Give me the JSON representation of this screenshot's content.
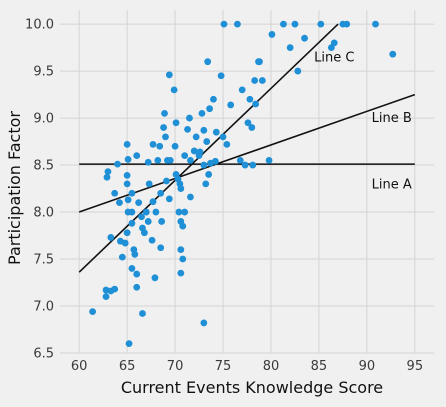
{
  "chart_data": {
    "type": "scatter",
    "title": "",
    "xlabel": "Current Events Knowledge Score",
    "ylabel": "Participation Factor",
    "xlim": [
      58,
      97
    ],
    "ylim": [
      6.5,
      10.15
    ],
    "xticks": [
      60,
      65,
      70,
      75,
      80,
      85,
      90,
      95
    ],
    "yticks": [
      6.5,
      7.0,
      7.5,
      8.0,
      8.5,
      9.0,
      9.5,
      10.0
    ],
    "grid": true,
    "point_color": "#1f8fd6",
    "line_color": "#111111",
    "background": "#f0f0f0",
    "grid_color": "#d4d4d4",
    "points": [
      [
        61.4,
        6.94
      ],
      [
        62.8,
        7.17
      ],
      [
        62.8,
        7.1
      ],
      [
        63.3,
        7.16
      ],
      [
        63.7,
        7.18
      ],
      [
        62.9,
        8.37
      ],
      [
        63.0,
        8.43
      ],
      [
        63.7,
        8.2
      ],
      [
        64.0,
        8.51
      ],
      [
        64.2,
        8.1
      ],
      [
        63.3,
        7.73
      ],
      [
        64.3,
        7.69
      ],
      [
        64.5,
        7.52
      ],
      [
        64.8,
        7.67
      ],
      [
        65.0,
        7.78
      ],
      [
        65.1,
        8.0
      ],
      [
        65.1,
        8.13
      ],
      [
        65.0,
        8.3
      ],
      [
        65.0,
        8.39
      ],
      [
        65.0,
        8.72
      ],
      [
        65.1,
        8.56
      ],
      [
        65.5,
        8.2
      ],
      [
        65.5,
        8.0
      ],
      [
        65.5,
        7.88
      ],
      [
        65.5,
        7.4
      ],
      [
        65.7,
        7.6
      ],
      [
        65.8,
        7.55
      ],
      [
        66.0,
        7.34
      ],
      [
        66.0,
        7.2
      ],
      [
        66.0,
        8.6
      ],
      [
        66.2,
        8.1
      ],
      [
        66.5,
        7.95
      ],
      [
        66.6,
        7.83
      ],
      [
        66.8,
        7.78
      ],
      [
        67.0,
        8.0
      ],
      [
        67.2,
        7.9
      ],
      [
        67.2,
        8.53
      ],
      [
        67.3,
        8.3
      ],
      [
        67.7,
        8.72
      ],
      [
        67.6,
        7.7
      ],
      [
        67.7,
        8.11
      ],
      [
        67.9,
        7.3
      ],
      [
        68.0,
        8.0
      ],
      [
        68.2,
        8.55
      ],
      [
        68.4,
        8.7
      ],
      [
        68.5,
        8.2
      ],
      [
        68.6,
        7.9
      ],
      [
        68.5,
        7.62
      ],
      [
        68.8,
        8.9
      ],
      [
        68.9,
        9.05
      ],
      [
        69.0,
        8.8
      ],
      [
        69.1,
        8.33
      ],
      [
        69.2,
        8.55
      ],
      [
        69.4,
        8.14
      ],
      [
        69.5,
        8.55
      ],
      [
        69.4,
        9.46
      ],
      [
        69.9,
        9.3
      ],
      [
        70.0,
        8.7
      ],
      [
        70.1,
        8.95
      ],
      [
        70.1,
        8.4
      ],
      [
        70.3,
        8.35
      ],
      [
        70.4,
        8.0
      ],
      [
        70.5,
        8.3
      ],
      [
        70.6,
        8.25
      ],
      [
        70.6,
        7.9
      ],
      [
        70.6,
        7.6
      ],
      [
        70.6,
        7.35
      ],
      [
        70.8,
        7.85
      ],
      [
        70.8,
        7.5
      ],
      [
        71.0,
        8.0
      ],
      [
        71.0,
        8.6
      ],
      [
        71.3,
        8.88
      ],
      [
        71.5,
        9.0
      ],
      [
        71.6,
        8.55
      ],
      [
        71.6,
        8.16
      ],
      [
        72.0,
        8.65
      ],
      [
        72.2,
        8.8
      ],
      [
        72.5,
        8.6
      ],
      [
        72.6,
        8.64
      ],
      [
        72.8,
        9.05
      ],
      [
        73.0,
        8.5
      ],
      [
        73.0,
        8.87
      ],
      [
        73.2,
        8.3
      ],
      [
        73.3,
        8.75
      ],
      [
        73.4,
        9.6
      ],
      [
        73.5,
        8.4
      ],
      [
        73.6,
        9.1
      ],
      [
        73.7,
        8.52
      ],
      [
        74.0,
        9.2
      ],
      [
        74.2,
        8.54
      ],
      [
        74.3,
        8.85
      ],
      [
        74.8,
        9.45
      ],
      [
        75.0,
        8.8
      ],
      [
        75.1,
        10.0
      ],
      [
        75.4,
        8.72
      ],
      [
        75.8,
        9.14
      ],
      [
        76.5,
        10.0
      ],
      [
        76.8,
        8.55
      ],
      [
        77.0,
        9.3
      ],
      [
        77.3,
        8.5
      ],
      [
        77.6,
        8.95
      ],
      [
        77.8,
        9.2
      ],
      [
        78.0,
        8.9
      ],
      [
        78.1,
        8.5
      ],
      [
        78.3,
        9.4
      ],
      [
        78.4,
        9.15
      ],
      [
        78.7,
        9.6
      ],
      [
        78.8,
        9.6
      ],
      [
        79.1,
        9.4
      ],
      [
        79.8,
        8.55
      ],
      [
        80.1,
        9.89
      ],
      [
        81.3,
        10.0
      ],
      [
        82.0,
        9.75
      ],
      [
        82.5,
        10.0
      ],
      [
        82.8,
        9.5
      ],
      [
        83.5,
        9.85
      ],
      [
        85.2,
        10.0
      ],
      [
        86.3,
        9.75
      ],
      [
        86.6,
        9.8
      ],
      [
        87.5,
        10.0
      ],
      [
        87.9,
        10.0
      ],
      [
        90.9,
        10.0
      ],
      [
        92.7,
        9.68
      ],
      [
        73.0,
        6.82
      ],
      [
        65.2,
        6.6
      ],
      [
        66.6,
        6.92
      ]
    ],
    "lines": [
      {
        "name": "Line A",
        "x": [
          60,
          95
        ],
        "y": [
          8.51,
          8.51
        ],
        "label_at": [
          90.5,
          8.25
        ]
      },
      {
        "name": "Line B",
        "x": [
          60,
          95
        ],
        "y": [
          8.0,
          9.25
        ],
        "label_at": [
          90.5,
          8.96
        ]
      },
      {
        "name": "Line C",
        "x": [
          60,
          87
        ],
        "y": [
          7.36,
          10.0
        ],
        "label_at": [
          84.5,
          9.6
        ]
      }
    ]
  }
}
